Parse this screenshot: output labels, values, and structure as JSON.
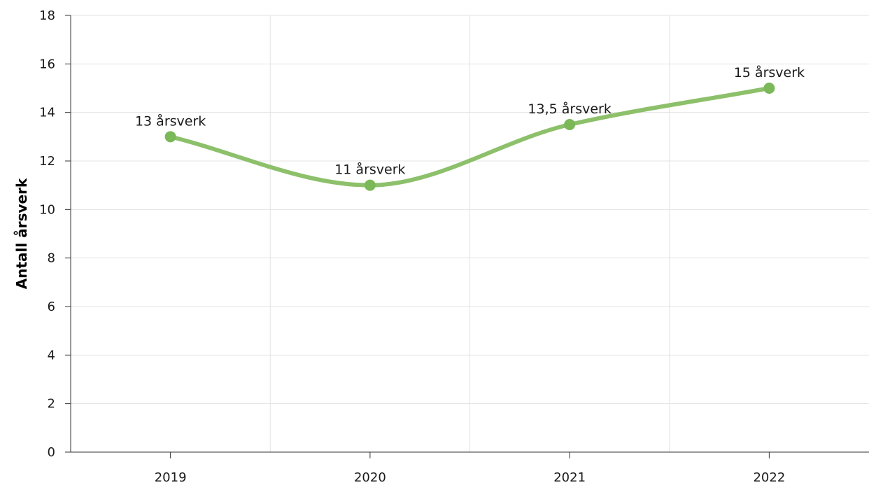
{
  "chart_data": {
    "type": "line",
    "categories": [
      "2019",
      "2020",
      "2021",
      "2022"
    ],
    "series": [
      {
        "values": [
          13,
          11,
          13.5,
          15
        ],
        "labels": [
          "13 årsverk",
          "11 årsverk",
          "13,5 årsverk",
          "15 årsverk"
        ],
        "color": "#8dc06a",
        "marker_color": "#7ab858",
        "smooth": true
      }
    ],
    "ylabel": "Antall årsverk",
    "ylim": [
      0,
      18
    ],
    "yticks": [
      "0",
      "2",
      "4",
      "6",
      "8",
      "10",
      "12",
      "14",
      "16",
      "18"
    ],
    "grid": true,
    "colors": {
      "grid": "#e3e3e3",
      "axis": "#333333"
    }
  }
}
